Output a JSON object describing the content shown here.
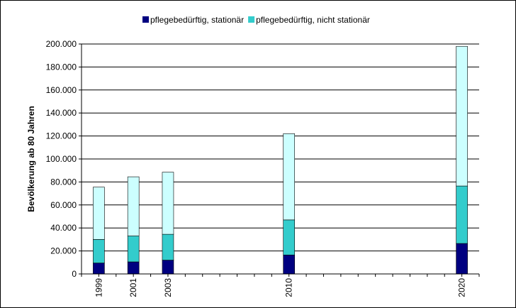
{
  "chart_data": {
    "type": "bar",
    "stacked": true,
    "x": [
      1999,
      2001,
      2003,
      2010,
      2020
    ],
    "x_tick_labels": [
      "1999",
      "2001",
      "2003",
      "2010",
      "2020"
    ],
    "series": [
      {
        "name": "pflegebedürftig, stationär",
        "values": [
          9500,
          10500,
          12000,
          16500,
          26500
        ],
        "color": "#000080"
      },
      {
        "name": "pflegebedürftig, nicht stationär",
        "values": [
          20500,
          22500,
          22500,
          30500,
          50000
        ],
        "color": "#33CCCC"
      },
      {
        "name": "",
        "values": [
          45500,
          51500,
          54000,
          75000,
          121500
        ],
        "color": "#CCFFFF"
      }
    ],
    "xlabel": "",
    "ylabel": "Bevölkerung ab 80 Jahren",
    "ylim": [
      0,
      200000
    ],
    "y_ticks": [
      0,
      20000,
      40000,
      60000,
      80000,
      100000,
      120000,
      140000,
      160000,
      180000,
      200000
    ],
    "y_tick_labels": [
      "0",
      "20.000",
      "40.000",
      "60.000",
      "80.000",
      "100.000",
      "120.000",
      "140.000",
      "160.000",
      "180.000",
      "200.000"
    ],
    "grid": true,
    "legend_position": "top"
  }
}
